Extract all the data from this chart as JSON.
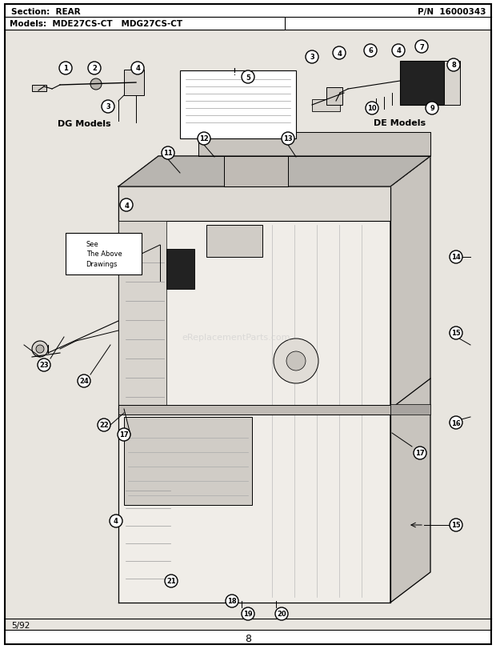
{
  "section_label": "Section:  REAR",
  "pn_label": "P/N  16000343",
  "models_label": "Models:  MDE27CS-CT   MDG27CS-CT",
  "page_number": "8",
  "date_label": "5/92",
  "bg_color": "#ffffff",
  "border_color": "#000000",
  "text_color": "#000000",
  "dg_label": "DG Models",
  "de_label": "DE Models",
  "see_drawing_text": "See\nThe Above\nDrawings",
  "body_fill": "#f0ede8",
  "body_dark": "#c8c4be",
  "body_mid": "#dedad4",
  "diagram_bg": "#e8e5df"
}
